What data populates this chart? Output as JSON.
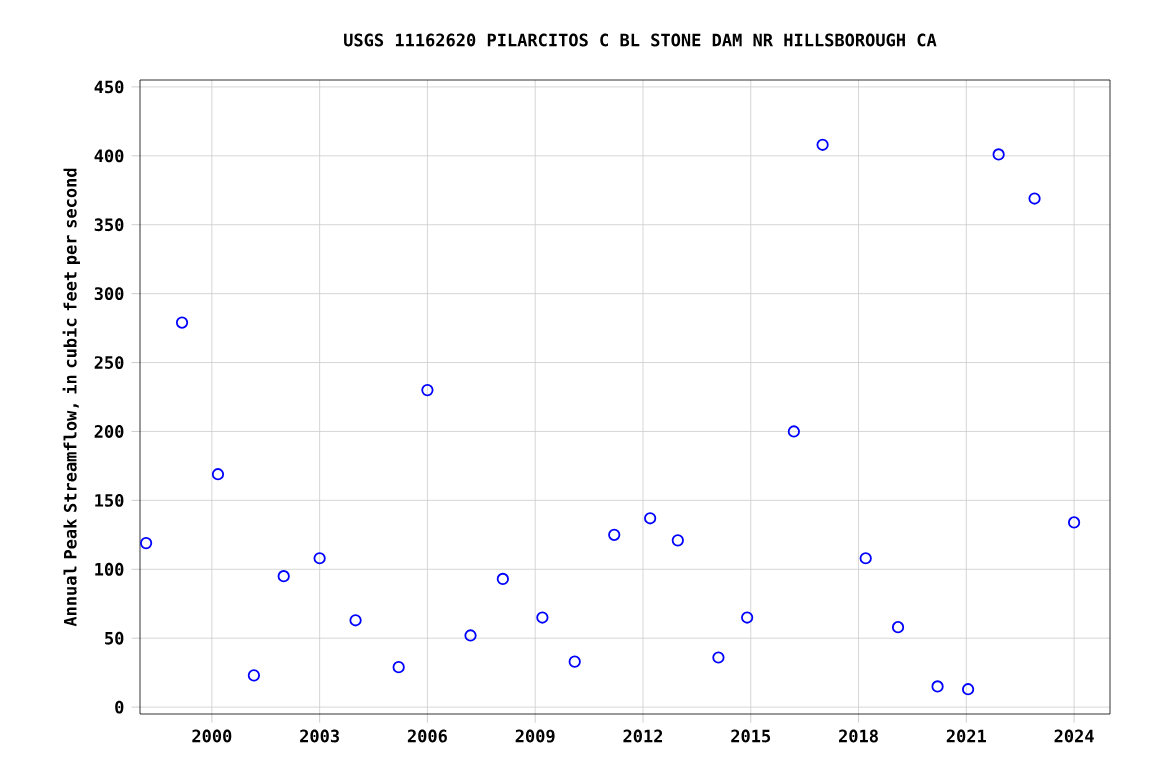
{
  "chart_data": {
    "type": "scatter",
    "title": "USGS 11162620 PILARCITOS C BL STONE DAM NR HILLSBOROUGH CA",
    "ylabel": "Annual Peak Streamflow, in cubic feet per second",
    "x": [
      1998.17,
      1999.17,
      2000.17,
      2001.17,
      2002.0,
      2003.0,
      2004.0,
      2005.2,
      2006.0,
      2007.2,
      2008.1,
      2009.2,
      2010.1,
      2011.2,
      2012.2,
      2012.97,
      2014.1,
      2014.9,
      2016.2,
      2017.0,
      2018.2,
      2019.1,
      2020.2,
      2021.05,
      2021.9,
      2022.9,
      2024.0
    ],
    "series": [
      {
        "color": "#0000ff",
        "values": [
          119,
          279,
          169,
          23,
          95,
          108,
          63,
          29,
          230,
          52,
          93,
          65,
          33,
          125,
          137,
          121,
          36,
          65,
          200,
          408,
          108,
          58,
          15,
          13,
          401,
          369,
          134
        ]
      }
    ],
    "xlim": [
      1998,
      2025
    ],
    "ylim": [
      -5,
      455
    ],
    "xticks": [
      2000,
      2003,
      2006,
      2009,
      2012,
      2015,
      2018,
      2021,
      2024
    ],
    "yticks": [
      0,
      50,
      100,
      150,
      200,
      250,
      300,
      350,
      400,
      450
    ],
    "grid": true,
    "marker": "circle"
  }
}
